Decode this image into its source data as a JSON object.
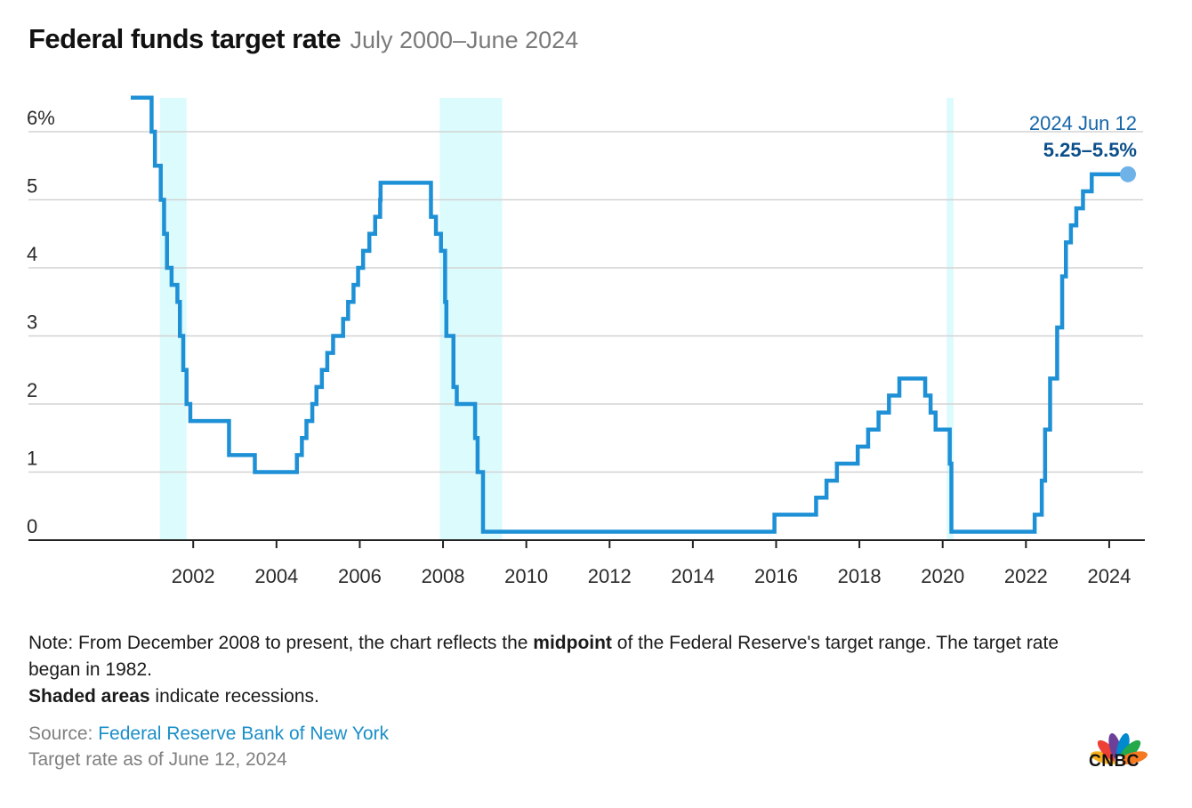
{
  "header": {
    "title": "Federal funds target rate",
    "subtitle": "July 2000–June 2024"
  },
  "colors": {
    "line": "#1e90d6",
    "recession": "#dcfbfd",
    "grid": "#d3d3d3",
    "annotation": "#1565a8",
    "endpoint": "#6fb2e8"
  },
  "chart_data": {
    "type": "line",
    "title": "Federal funds target rate",
    "subtitle": "July 2000–June 2024",
    "ylim": [
      0,
      6.5
    ],
    "xlim": [
      2000.5,
      2024.8
    ],
    "y_ticks": [
      {
        "value": 6,
        "label": "6%"
      },
      {
        "value": 5,
        "label": "5"
      },
      {
        "value": 4,
        "label": "4"
      },
      {
        "value": 3,
        "label": "3"
      },
      {
        "value": 2,
        "label": "2"
      },
      {
        "value": 1,
        "label": "1"
      },
      {
        "value": 0,
        "label": "0"
      }
    ],
    "x_ticks": [
      {
        "value": 2002,
        "label": "2002"
      },
      {
        "value": 2004,
        "label": "2004"
      },
      {
        "value": 2006,
        "label": "2006"
      },
      {
        "value": 2008,
        "label": "2008"
      },
      {
        "value": 2010,
        "label": "2010"
      },
      {
        "value": 2012,
        "label": "2012"
      },
      {
        "value": 2014,
        "label": "2014"
      },
      {
        "value": 2016,
        "label": "2016"
      },
      {
        "value": 2018,
        "label": "2018"
      },
      {
        "value": 2020,
        "label": "2020"
      },
      {
        "value": 2022,
        "label": "2022"
      },
      {
        "value": 2024,
        "label": "2024"
      }
    ],
    "grid": "horizontal",
    "recessions": [
      {
        "start": 2001.2,
        "end": 2001.84
      },
      {
        "start": 2007.92,
        "end": 2009.42
      },
      {
        "start": 2020.1,
        "end": 2020.26
      }
    ],
    "series": [
      {
        "step": true,
        "points": [
          [
            2000.5,
            6.5
          ],
          [
            2001.0,
            6.0
          ],
          [
            2001.08,
            5.5
          ],
          [
            2001.22,
            5.0
          ],
          [
            2001.3,
            4.5
          ],
          [
            2001.37,
            4.0
          ],
          [
            2001.48,
            3.75
          ],
          [
            2001.62,
            3.5
          ],
          [
            2001.68,
            3.0
          ],
          [
            2001.76,
            2.5
          ],
          [
            2001.84,
            2.0
          ],
          [
            2001.93,
            1.75
          ],
          [
            2002.86,
            1.25
          ],
          [
            2003.48,
            1.0
          ],
          [
            2004.49,
            1.25
          ],
          [
            2004.61,
            1.5
          ],
          [
            2004.72,
            1.75
          ],
          [
            2004.86,
            2.0
          ],
          [
            2004.96,
            2.25
          ],
          [
            2005.09,
            2.5
          ],
          [
            2005.22,
            2.75
          ],
          [
            2005.36,
            3.0
          ],
          [
            2005.6,
            3.25
          ],
          [
            2005.72,
            3.5
          ],
          [
            2005.85,
            3.75
          ],
          [
            2005.96,
            4.0
          ],
          [
            2006.08,
            4.25
          ],
          [
            2006.23,
            4.5
          ],
          [
            2006.37,
            4.75
          ],
          [
            2006.49,
            5.0
          ],
          [
            2006.5,
            5.25
          ],
          [
            2007.71,
            4.75
          ],
          [
            2007.83,
            4.5
          ],
          [
            2007.95,
            4.25
          ],
          [
            2008.05,
            3.5
          ],
          [
            2008.08,
            3.0
          ],
          [
            2008.25,
            2.25
          ],
          [
            2008.33,
            2.0
          ],
          [
            2008.77,
            1.5
          ],
          [
            2008.83,
            1.0
          ],
          [
            2008.96,
            0.125
          ],
          [
            2015.96,
            0.375
          ],
          [
            2016.96,
            0.625
          ],
          [
            2017.21,
            0.875
          ],
          [
            2017.46,
            1.125
          ],
          [
            2017.96,
            1.375
          ],
          [
            2018.21,
            1.625
          ],
          [
            2018.46,
            1.875
          ],
          [
            2018.71,
            2.125
          ],
          [
            2018.96,
            2.375
          ],
          [
            2019.58,
            2.125
          ],
          [
            2019.71,
            1.875
          ],
          [
            2019.83,
            1.625
          ],
          [
            2020.17,
            1.125
          ],
          [
            2020.21,
            0.125
          ],
          [
            2022.21,
            0.375
          ],
          [
            2022.38,
            0.875
          ],
          [
            2022.46,
            1.625
          ],
          [
            2022.58,
            2.375
          ],
          [
            2022.75,
            3.125
          ],
          [
            2022.87,
            3.875
          ],
          [
            2022.96,
            4.375
          ],
          [
            2023.08,
            4.625
          ],
          [
            2023.21,
            4.875
          ],
          [
            2023.37,
            5.125
          ],
          [
            2023.58,
            5.375
          ],
          [
            2024.45,
            5.375
          ]
        ]
      }
    ],
    "annotation": {
      "date": "2024 Jun 12",
      "value": "5.25–5.5%",
      "x": 2024.45,
      "y": 5.375
    }
  },
  "footer": {
    "note_part1": "Note: From December 2008 to present, the chart reflects the ",
    "note_bold1": "midpoint",
    "note_part2": " of the Federal Reserve's target range. The target rate began in 1982.",
    "note_bold2": "Shaded areas",
    "note_part3": " indicate recessions.",
    "source_label": "Source: ",
    "source_link": "Federal Reserve Bank of New York",
    "as_of": "Target rate as of June 12, 2024"
  },
  "logo": {
    "text": "CNBC",
    "icon": "nbc-peacock-icon",
    "colors": [
      "#f8b11c",
      "#ef4036",
      "#6c3f99",
      "#0089cf",
      "#23a84a",
      "#f47920"
    ]
  }
}
